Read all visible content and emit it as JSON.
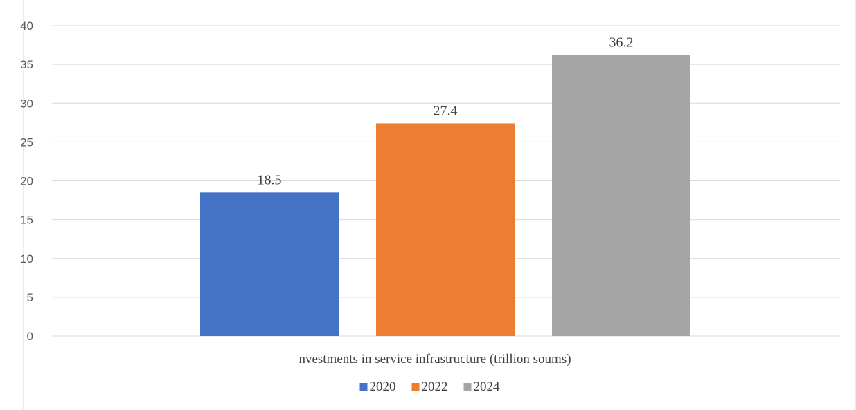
{
  "chart_data": {
    "type": "bar",
    "title": "",
    "categories": [
      "nvestments in service infrastructure (trillion soums)"
    ],
    "series": [
      {
        "name": "2020",
        "values": [
          18.5
        ],
        "color": "#4472C4"
      },
      {
        "name": "2022",
        "values": [
          27.4
        ],
        "color": "#ED7D31"
      },
      {
        "name": "2024",
        "values": [
          36.2
        ],
        "color": "#A5A5A5"
      }
    ],
    "yticks": [
      "0",
      "5",
      "10",
      "15",
      "20",
      "25",
      "30",
      "35",
      "40"
    ],
    "ylim": [
      0,
      40
    ],
    "xlabel": "",
    "ylabel": "",
    "grid": true,
    "legend": "bottom",
    "gridline_color": "#D9D9D9"
  }
}
